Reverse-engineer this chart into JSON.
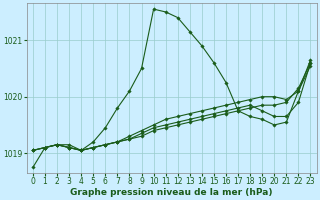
{
  "xlabel": "Graphe pression niveau de la mer (hPa)",
  "background_color": "#cceeff",
  "grid_color": "#99cccc",
  "line_color": "#1a5c1a",
  "xlim": [
    -0.5,
    23.5
  ],
  "ylim": [
    1018.65,
    1021.65
  ],
  "yticks": [
    1019,
    1020,
    1021
  ],
  "xticks": [
    0,
    1,
    2,
    3,
    4,
    5,
    6,
    7,
    8,
    9,
    10,
    11,
    12,
    13,
    14,
    15,
    16,
    17,
    18,
    19,
    20,
    21,
    22,
    23
  ],
  "series": [
    [
      1018.75,
      1019.1,
      1019.15,
      1019.15,
      1019.05,
      1019.2,
      1019.45,
      1019.8,
      1020.1,
      1020.5,
      1021.55,
      1021.5,
      1021.4,
      1021.15,
      1020.9,
      1020.6,
      1020.25,
      1019.75,
      1019.65,
      1019.6,
      1019.5,
      1019.55,
      1020.1,
      1020.65
    ],
    [
      1019.05,
      1019.1,
      1019.15,
      1019.1,
      1019.05,
      1019.1,
      1019.15,
      1019.2,
      1019.3,
      1019.4,
      1019.5,
      1019.6,
      1019.65,
      1019.7,
      1019.75,
      1019.8,
      1019.85,
      1019.9,
      1019.95,
      1020.0,
      1020.0,
      1019.95,
      1020.1,
      1020.55
    ],
    [
      1019.05,
      1019.1,
      1019.15,
      1019.1,
      1019.05,
      1019.1,
      1019.15,
      1019.2,
      1019.25,
      1019.35,
      1019.45,
      1019.5,
      1019.55,
      1019.6,
      1019.65,
      1019.7,
      1019.75,
      1019.8,
      1019.85,
      1019.75,
      1019.65,
      1019.65,
      1019.9,
      1020.6
    ],
    [
      1019.05,
      1019.1,
      1019.15,
      1019.1,
      1019.05,
      1019.1,
      1019.15,
      1019.2,
      1019.25,
      1019.3,
      1019.4,
      1019.45,
      1019.5,
      1019.55,
      1019.6,
      1019.65,
      1019.7,
      1019.75,
      1019.8,
      1019.85,
      1019.85,
      1019.9,
      1020.15,
      1020.6
    ]
  ],
  "markersize": 1.8,
  "linewidth": 0.8,
  "xlabel_fontsize": 6.5,
  "xlabel_fontweight": "bold",
  "tick_fontsize": 5.5,
  "tick_color": "#1a5c1a",
  "spine_color": "#888888"
}
